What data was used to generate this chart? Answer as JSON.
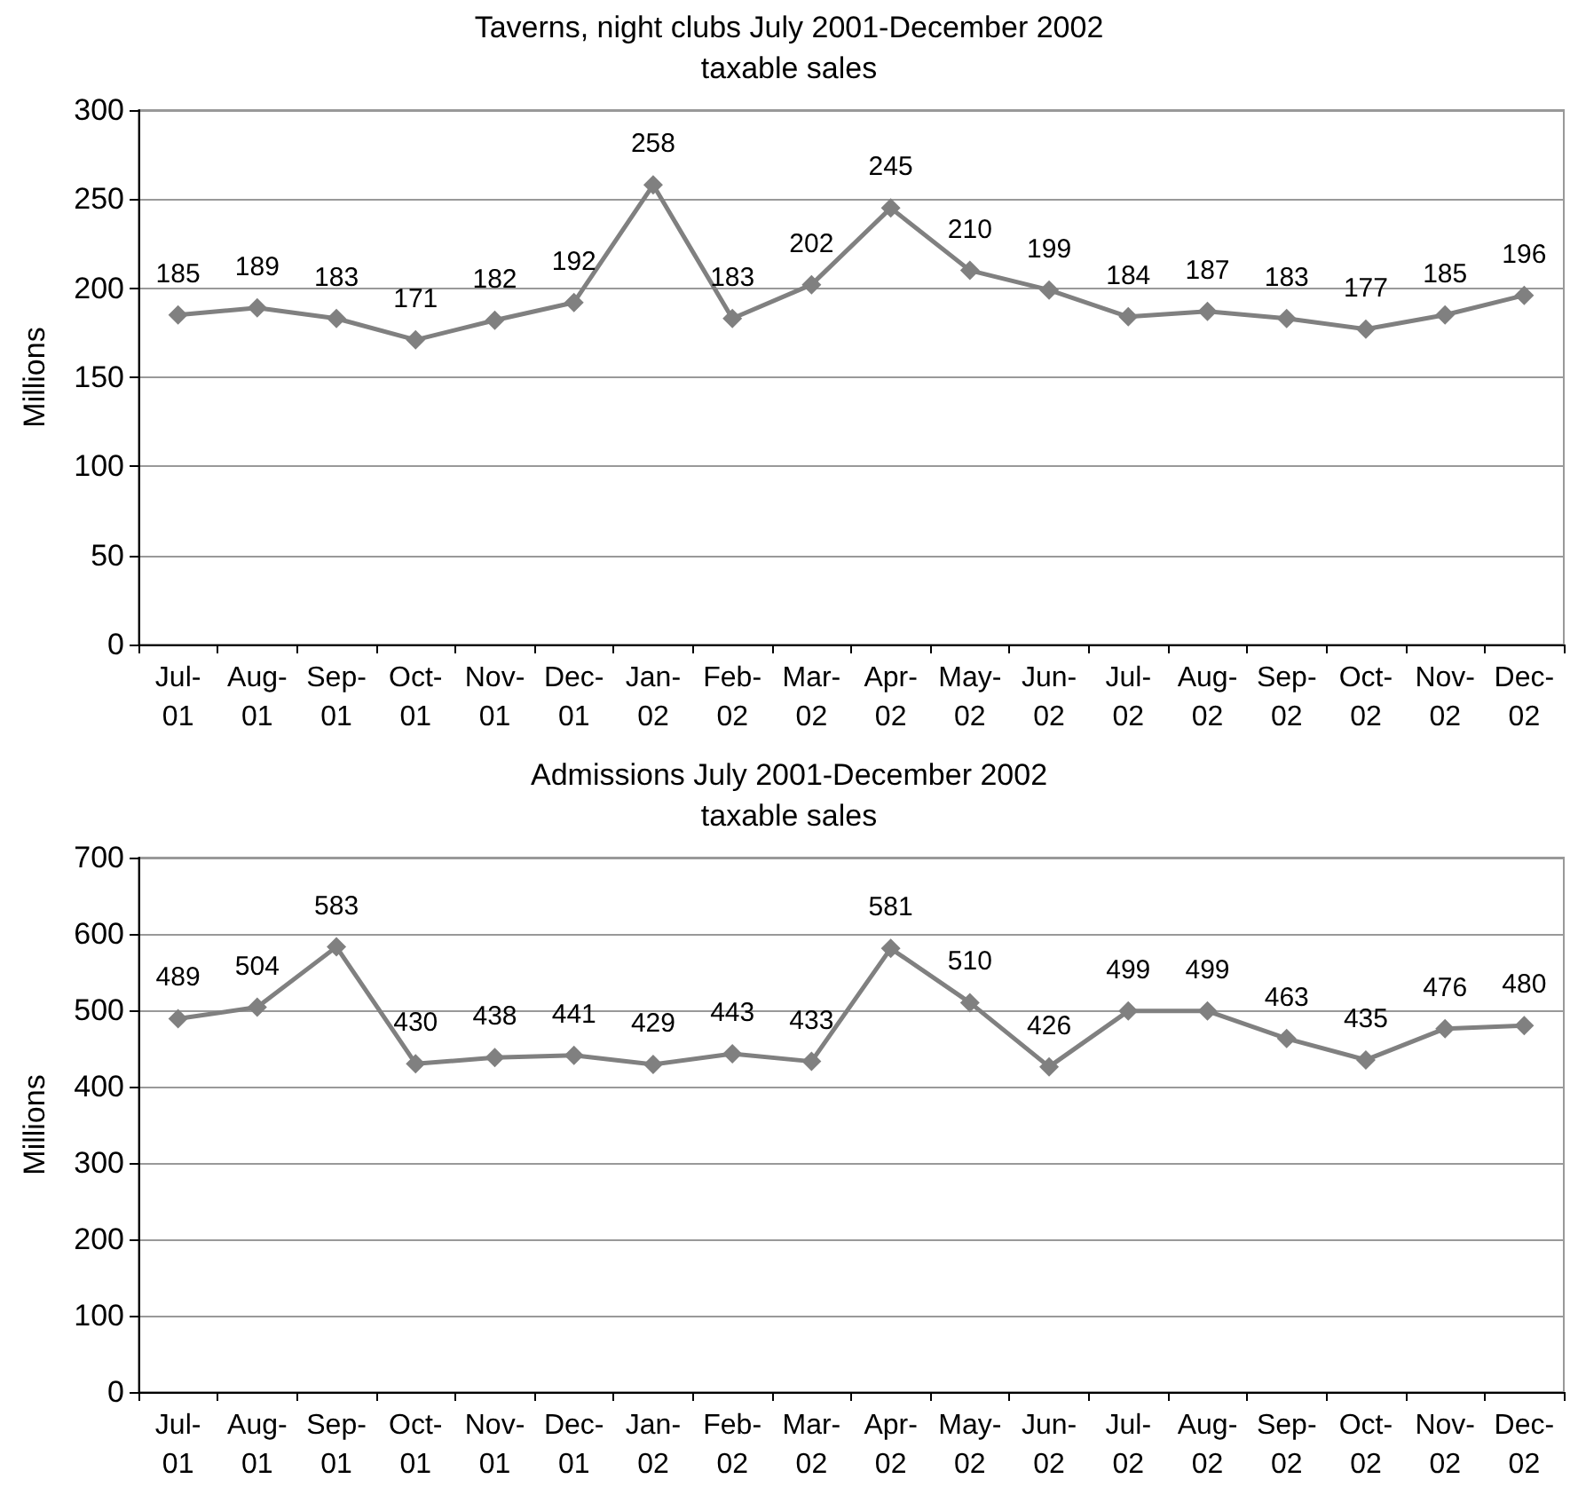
{
  "chart_data": [
    {
      "type": "line",
      "title": "Taverns, night clubs July 2001-December 2002",
      "subtitle": "taxable sales",
      "ylabel": "Millions",
      "categories": [
        "Jul-01",
        "Aug-01",
        "Sep-01",
        "Oct-01",
        "Nov-01",
        "Dec-01",
        "Jan-02",
        "Feb-02",
        "Mar-02",
        "Apr-02",
        "May-02",
        "Jun-02",
        "Jul-02",
        "Aug-02",
        "Sep-02",
        "Oct-02",
        "Nov-02",
        "Dec-02"
      ],
      "series": [
        {
          "color": "#808080",
          "values": [
            185,
            189,
            183,
            171,
            182,
            192,
            258,
            183,
            202,
            245,
            210,
            199,
            184,
            187,
            183,
            177,
            185,
            196
          ]
        }
      ],
      "ylim": [
        0,
        300
      ],
      "yticks": [
        0,
        50,
        100,
        150,
        200,
        250,
        300
      ],
      "grid": "y",
      "marker": "diamond",
      "data_labels": true
    },
    {
      "type": "line",
      "title": "Admissions July 2001-December 2002",
      "subtitle": "taxable sales",
      "ylabel": "Millions",
      "categories": [
        "Jul-01",
        "Aug-01",
        "Sep-01",
        "Oct-01",
        "Nov-01",
        "Dec-01",
        "Jan-02",
        "Feb-02",
        "Mar-02",
        "Apr-02",
        "May-02",
        "Jun-02",
        "Jul-02",
        "Aug-02",
        "Sep-02",
        "Oct-02",
        "Nov-02",
        "Dec-02"
      ],
      "series": [
        {
          "color": "#808080",
          "values": [
            489,
            504,
            583,
            430,
            438,
            441,
            429,
            443,
            433,
            581,
            510,
            426,
            499,
            499,
            463,
            435,
            476,
            480
          ]
        }
      ],
      "ylim": [
        0,
        700
      ],
      "yticks": [
        0,
        100,
        200,
        300,
        400,
        500,
        600,
        700
      ],
      "grid": "y",
      "marker": "diamond",
      "data_labels": true
    }
  ]
}
